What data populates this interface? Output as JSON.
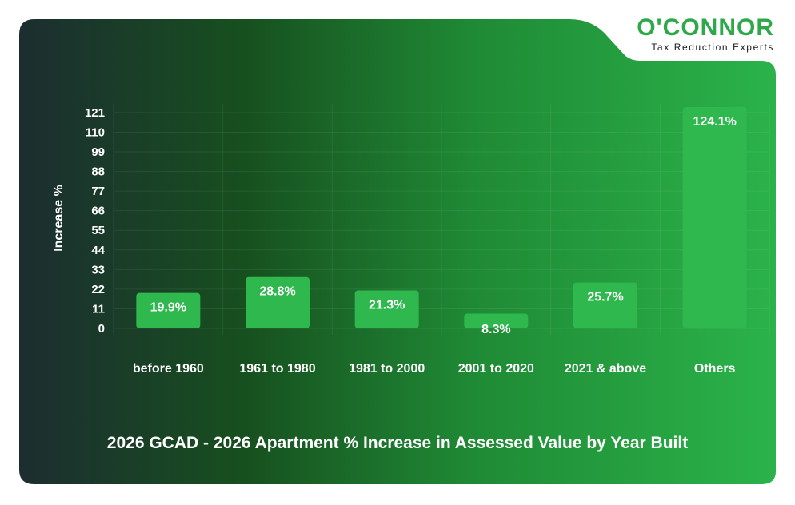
{
  "logo": {
    "name": "O'CONNOR",
    "tagline": "Tax Reduction Experts"
  },
  "colors": {
    "background_dark": "#1d2f31",
    "background_bright": "#2bb34a",
    "bar": "#2eb84d",
    "text": "#ffffff",
    "brand_green": "#2ea84a"
  },
  "chart_data": {
    "type": "bar",
    "title": "2026 GCAD - 2026 Apartment % Increase in Assessed Value by Year Built",
    "xlabel": "",
    "ylabel": "Increase %",
    "categories": [
      "before 1960",
      "1961 to 1980",
      "1981 to 2000",
      "2001 to 2020",
      "2021 & above",
      "Others"
    ],
    "values": [
      19.9,
      28.8,
      21.3,
      8.3,
      25.7,
      124.1
    ],
    "data_labels": [
      "19.9%",
      "28.8%",
      "21.3%",
      "8.3%",
      "25.7%",
      "124.1%"
    ],
    "yticks": [
      0,
      11,
      22,
      33,
      44,
      55,
      66,
      77,
      88,
      99,
      110,
      121
    ],
    "ylim": [
      0,
      124.1
    ],
    "grid": true,
    "legend": "none"
  }
}
